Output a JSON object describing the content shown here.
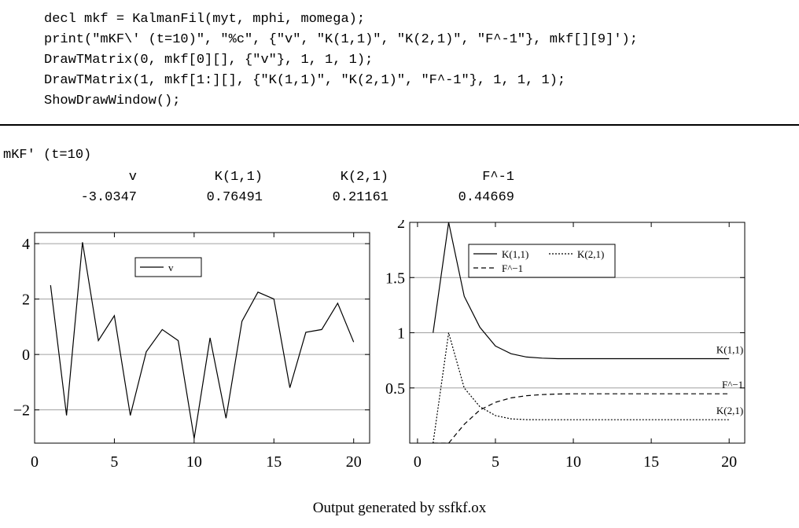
{
  "code_lines": [
    "decl mkf = KalmanFil(myt, mphi, momega);",
    "print(\"mKF\\' (t=10)\", \"%c\", {\"v\", \"K(1,1)\", \"K(2,1)\", \"F^-1\"}, mkf[][9]');",
    "DrawTMatrix(0, mkf[0][], {\"v\"}, 1, 1, 1);",
    "DrawTMatrix(1, mkf[1:][], {\"K(1,1)\", \"K(2,1)\", \"F^-1\"}, 1, 1, 1);",
    "ShowDrawWindow();"
  ],
  "output": {
    "title": "mKF' (t=10)",
    "headers": [
      "v",
      "K(1,1)",
      "K(2,1)",
      "F^-1"
    ],
    "values": [
      "-3.0347",
      "0.76491",
      "0.21161",
      "0.44669"
    ]
  },
  "caption": "Output generated by ssfkf.ox",
  "chart_data": [
    {
      "type": "line",
      "x": [
        1,
        2,
        3,
        4,
        5,
        6,
        7,
        8,
        9,
        10,
        11,
        12,
        13,
        14,
        15,
        16,
        17,
        18,
        19,
        20
      ],
      "series": [
        {
          "name": "v",
          "style": "solid",
          "values": [
            2.5,
            -2.2,
            4.05,
            0.5,
            1.4,
            -2.2,
            0.1,
            0.9,
            0.5,
            -3.03,
            0.6,
            -2.3,
            1.2,
            2.25,
            2.0,
            -1.2,
            0.8,
            0.9,
            1.85,
            0.45
          ]
        }
      ],
      "xlim": [
        0,
        21
      ],
      "ylim": [
        -3.2,
        4.4
      ],
      "xticks": [
        0,
        5,
        10,
        15,
        20
      ],
      "yticks": [
        -2,
        0,
        2,
        4
      ],
      "ytick_labels": [
        "−2",
        "0",
        "2",
        "4"
      ],
      "grid": true,
      "legend": "top-left"
    },
    {
      "type": "line",
      "x": [
        1,
        2,
        3,
        4,
        5,
        6,
        7,
        8,
        9,
        10,
        11,
        12,
        13,
        14,
        15,
        16,
        17,
        18,
        19,
        20
      ],
      "series": [
        {
          "name": "K(1,1)",
          "style": "solid",
          "end_label": "K(1,1)",
          "values": [
            1.0,
            2.0,
            1.33,
            1.05,
            0.88,
            0.81,
            0.78,
            0.77,
            0.765,
            0.765,
            0.765,
            0.765,
            0.765,
            0.765,
            0.765,
            0.765,
            0.765,
            0.765,
            0.765,
            0.765
          ]
        },
        {
          "name": "K(2,1)",
          "style": "dotted",
          "end_label": "K(2,1)",
          "values": [
            0.0,
            1.0,
            0.5,
            0.33,
            0.25,
            0.22,
            0.213,
            0.212,
            0.212,
            0.212,
            0.212,
            0.212,
            0.212,
            0.212,
            0.212,
            0.212,
            0.212,
            0.212,
            0.212,
            0.212
          ]
        },
        {
          "name": "F^−1",
          "style": "dashed",
          "end_label": "F^−1",
          "values": [
            0.0,
            0.0,
            0.17,
            0.3,
            0.37,
            0.41,
            0.43,
            0.44,
            0.445,
            0.447,
            0.447,
            0.447,
            0.447,
            0.447,
            0.447,
            0.447,
            0.447,
            0.447,
            0.447,
            0.447
          ]
        }
      ],
      "xlim": [
        -0.5,
        21
      ],
      "ylim": [
        0,
        2
      ],
      "xticks": [
        0,
        5,
        10,
        15,
        20
      ],
      "yticks": [
        0.5,
        1,
        1.5,
        2
      ],
      "ytick_labels": [
        "0.5",
        "1",
        "1.5",
        "2"
      ],
      "grid": true,
      "legend": "top-left"
    }
  ],
  "colors": {
    "line": "#000000",
    "grid": "#a0a0a0",
    "background": "#ffffff"
  }
}
